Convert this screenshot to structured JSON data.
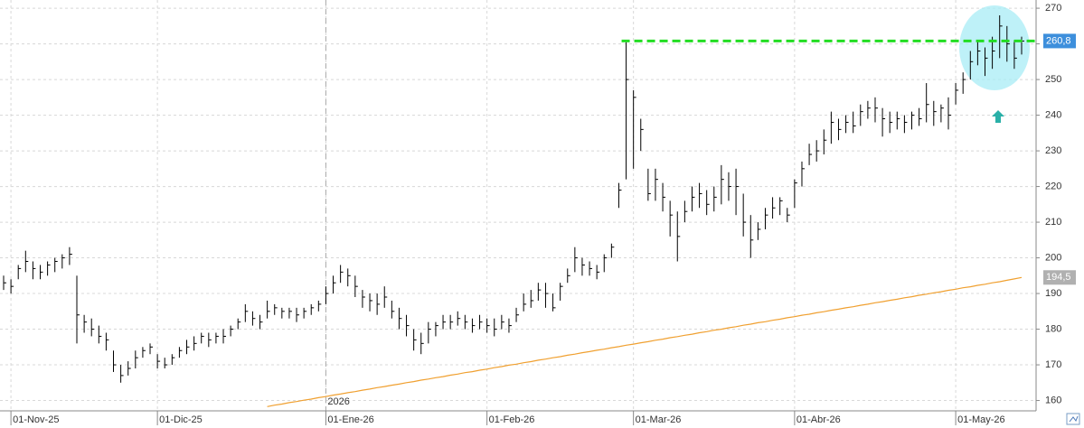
{
  "chart_data": {
    "type": "ohlc",
    "x": [
      "2025-10-31",
      "2025-11-03",
      "2025-11-04",
      "2025-11-05",
      "2025-11-06",
      "2025-11-07",
      "2025-11-10",
      "2025-11-11",
      "2025-11-12",
      "2025-11-13",
      "2025-11-14",
      "2025-11-17",
      "2025-11-18",
      "2025-11-19",
      "2025-11-20",
      "2025-11-21",
      "2025-11-24",
      "2025-11-25",
      "2025-11-26",
      "2025-11-27",
      "2025-11-28",
      "2025-12-01",
      "2025-12-02",
      "2025-12-03",
      "2025-12-04",
      "2025-12-05",
      "2025-12-08",
      "2025-12-09",
      "2025-12-10",
      "2025-12-11",
      "2025-12-12",
      "2025-12-15",
      "2025-12-16",
      "2025-12-17",
      "2025-12-18",
      "2025-12-19",
      "2025-12-22",
      "2025-12-23",
      "2025-12-24",
      "2025-12-25",
      "2025-12-26",
      "2025-12-29",
      "2025-12-30",
      "2025-12-31",
      "2026-01-01",
      "2026-01-02",
      "2026-01-05",
      "2026-01-06",
      "2026-01-07",
      "2026-01-08",
      "2026-01-09",
      "2026-01-12",
      "2026-01-13",
      "2026-01-14",
      "2026-01-15",
      "2026-01-16",
      "2026-01-19",
      "2026-01-20",
      "2026-01-21",
      "2026-01-22",
      "2026-01-23",
      "2026-01-26",
      "2026-01-27",
      "2026-01-28",
      "2026-01-29",
      "2026-01-30",
      "2026-02-02",
      "2026-02-03",
      "2026-02-04",
      "2026-02-05",
      "2026-02-06",
      "2026-02-09",
      "2026-02-10",
      "2026-02-11",
      "2026-02-12",
      "2026-02-13",
      "2026-02-16",
      "2026-02-17",
      "2026-02-18",
      "2026-02-19",
      "2026-02-20",
      "2026-02-23",
      "2026-02-24",
      "2026-02-25",
      "2026-02-26",
      "2026-02-27",
      "2026-03-02",
      "2026-03-03",
      "2026-03-04",
      "2026-03-05",
      "2026-03-06",
      "2026-03-09",
      "2026-03-10",
      "2026-03-11",
      "2026-03-12",
      "2026-03-13",
      "2026-03-16",
      "2026-03-17",
      "2026-03-18",
      "2026-03-19",
      "2026-03-20",
      "2026-03-23",
      "2026-03-24",
      "2026-03-25",
      "2026-03-26",
      "2026-03-27",
      "2026-03-30",
      "2026-03-31",
      "2026-04-01",
      "2026-04-02",
      "2026-04-03",
      "2026-04-06",
      "2026-04-07",
      "2026-04-08",
      "2026-04-09",
      "2026-04-10",
      "2026-04-13",
      "2026-04-14",
      "2026-04-15",
      "2026-04-16",
      "2026-04-17",
      "2026-04-20",
      "2026-04-21",
      "2026-04-22",
      "2026-04-23",
      "2026-04-24",
      "2026-04-27",
      "2026-04-28",
      "2026-04-29",
      "2026-04-30",
      "2026-05-01",
      "2026-05-04",
      "2026-05-05",
      "2026-05-06",
      "2026-05-07",
      "2026-05-08",
      "2026-05-11",
      "2026-05-12",
      "2026-05-13",
      "2026-05-14"
    ],
    "high": [
      195,
      194,
      198,
      202,
      199,
      198,
      199,
      200,
      201,
      203,
      195,
      184,
      183,
      181,
      179,
      174,
      170,
      171,
      174,
      175,
      176,
      173,
      172,
      173,
      175,
      177,
      178,
      179,
      179,
      179,
      180,
      181,
      183,
      187,
      185,
      184,
      188,
      187,
      186,
      186,
      186,
      186,
      187,
      188,
      192,
      195,
      198,
      197,
      195,
      191,
      190,
      190,
      192,
      188,
      186,
      184,
      180,
      179,
      182,
      182,
      184,
      184,
      185,
      184,
      183,
      184,
      183,
      183,
      184,
      183,
      186,
      190,
      191,
      193,
      193,
      190,
      193,
      197,
      203,
      200,
      199,
      198,
      201,
      204,
      221,
      260.5,
      247,
      239,
      225,
      225,
      221,
      216,
      213,
      216,
      220,
      221,
      219,
      220,
      226,
      224,
      225,
      218,
      212,
      210,
      214,
      217,
      217,
      214,
      222,
      227,
      232,
      233,
      236,
      241,
      239,
      240,
      241,
      243,
      244,
      245,
      242,
      241,
      241,
      240,
      241,
      242,
      249,
      244,
      243,
      245,
      249,
      252,
      258,
      261,
      259,
      262,
      268,
      265,
      261,
      262
    ],
    "low": [
      191,
      190,
      194,
      196,
      194,
      194,
      195,
      196,
      197,
      198,
      176,
      179,
      178,
      176,
      174,
      168,
      165,
      167,
      169,
      172,
      173,
      169,
      169,
      170,
      172,
      173,
      174,
      176,
      175,
      176,
      176,
      178,
      180,
      182,
      181,
      180,
      183,
      184,
      183,
      183,
      182,
      183,
      184,
      185,
      187,
      190,
      193,
      192,
      189,
      186,
      185,
      184,
      186,
      183,
      180,
      178,
      174,
      173,
      176,
      178,
      180,
      180,
      181,
      180,
      179,
      180,
      179,
      178,
      180,
      179,
      182,
      185,
      186,
      188,
      186,
      185,
      188,
      193,
      196,
      195,
      195,
      194,
      196,
      200,
      214,
      222,
      225,
      230,
      216,
      216,
      213,
      206,
      199,
      210,
      213,
      214,
      212,
      213,
      215,
      216,
      212,
      206,
      200,
      205,
      208,
      211,
      212,
      210,
      214,
      220,
      226,
      227,
      229,
      232,
      233,
      235,
      235,
      237,
      239,
      238,
      234,
      235,
      236,
      235,
      236,
      237,
      238,
      237,
      238,
      236,
      243,
      246,
      250,
      254,
      251,
      253,
      256,
      255,
      253,
      257
    ],
    "close": [
      193,
      192,
      197,
      199,
      197,
      196,
      198,
      199,
      200,
      201,
      184,
      182,
      180,
      178,
      177,
      170,
      167,
      169,
      172,
      174,
      175,
      171,
      170,
      172,
      174,
      175,
      176,
      178,
      177,
      178,
      178,
      180,
      182,
      185,
      183,
      182,
      185,
      186,
      185,
      185,
      184,
      185,
      186,
      187,
      190,
      193,
      196,
      195,
      192,
      189,
      188,
      187,
      189,
      185,
      183,
      181,
      177,
      176,
      180,
      181,
      182,
      182,
      183,
      182,
      181,
      182,
      181,
      180,
      182,
      181,
      184,
      187,
      188,
      191,
      190,
      186,
      192,
      195,
      200,
      198,
      197,
      196,
      200,
      203,
      219,
      250,
      245,
      236,
      218,
      222,
      217,
      212,
      206,
      213,
      217,
      218,
      215,
      217,
      222,
      220,
      220,
      210,
      205,
      208,
      212,
      214,
      216,
      212,
      221,
      225,
      229,
      230,
      233,
      238,
      236,
      238,
      237,
      241,
      242,
      242,
      239,
      238,
      239,
      238,
      240,
      239,
      243,
      241,
      242,
      240,
      247,
      250,
      255,
      258,
      256,
      258,
      265,
      260,
      256,
      260.8
    ],
    "last_label": "260,8",
    "color": "#000000",
    "moving_average": {
      "color": "#f0a030",
      "last_label": "194,5",
      "values": [
        null,
        null,
        null,
        null,
        null,
        null,
        null,
        null,
        null,
        null,
        null,
        null,
        null,
        null,
        null,
        null,
        null,
        null,
        null,
        null,
        null,
        null,
        null,
        null,
        null,
        null,
        null,
        null,
        null,
        null,
        null,
        null,
        null,
        null,
        null,
        null,
        158.3,
        158.7,
        159.0,
        159.4,
        159.7,
        160.1,
        160.4,
        160.8,
        161.1,
        161.5,
        161.8,
        162.2,
        162.5,
        162.9,
        163.2,
        163.6,
        163.9,
        164.3,
        164.6,
        165.0,
        165.3,
        165.7,
        166.0,
        166.4,
        166.7,
        167.1,
        167.4,
        167.8,
        168.1,
        168.5,
        168.8,
        169.2,
        169.5,
        169.9,
        170.2,
        170.6,
        170.9,
        171.3,
        171.6,
        172.0,
        172.3,
        172.7,
        173.0,
        173.4,
        173.7,
        174.1,
        174.4,
        174.8,
        175.1,
        175.5,
        175.8,
        176.2,
        176.5,
        176.9,
        177.2,
        177.6,
        177.9,
        178.3,
        178.6,
        179.0,
        179.3,
        179.7,
        180.0,
        180.4,
        180.7,
        181.1,
        181.4,
        181.8,
        182.1,
        182.5,
        182.8,
        183.2,
        183.5,
        183.9,
        184.2,
        184.6,
        184.9,
        185.3,
        185.6,
        186.0,
        186.3,
        186.7,
        187.0,
        187.4,
        187.7,
        188.1,
        188.4,
        188.8,
        189.1,
        189.5,
        189.8,
        190.2,
        190.5,
        190.9,
        191.2,
        191.6,
        191.9,
        192.3,
        192.6,
        193.0,
        193.3,
        193.7,
        194.1,
        194.5
      ]
    },
    "resistance": {
      "value": 260.8,
      "start": "2026-02-27",
      "color": "#22dd22"
    },
    "year_marker": {
      "value": "2026-01-01",
      "label": "2026"
    },
    "xticks": [
      {
        "value": "2025-11-01",
        "label": "01-Nov-25"
      },
      {
        "value": "2025-12-01",
        "label": "01-Dic-25"
      },
      {
        "value": "2026-01-01",
        "label": "01-Ene-26"
      },
      {
        "value": "2026-02-01",
        "label": "01-Feb-26"
      },
      {
        "value": "2026-03-01",
        "label": "01-Mar-26"
      },
      {
        "value": "2026-04-01",
        "label": "01-Abr-26"
      },
      {
        "value": "2026-05-01",
        "label": "01-May-26"
      }
    ],
    "ylim": [
      157.1,
      272.3
    ],
    "yticks": [
      160,
      170,
      180,
      190,
      200,
      210,
      220,
      230,
      240,
      250,
      260,
      270
    ],
    "grid": true
  }
}
